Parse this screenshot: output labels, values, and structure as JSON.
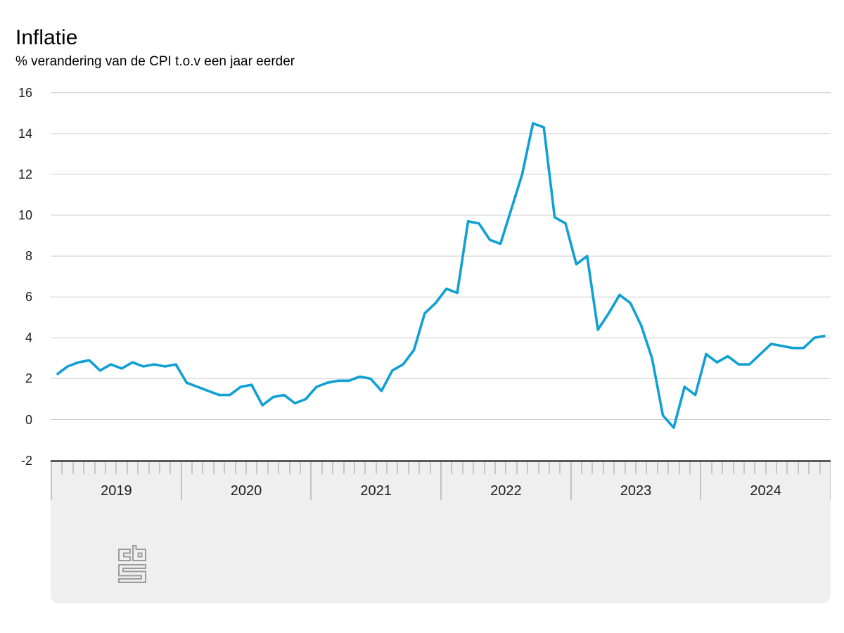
{
  "header": {
    "title": "Inflatie",
    "subtitle": "% verandering van de CPI t.o.v een jaar eerder"
  },
  "footer": {
    "logo_icon": "cbs-logo"
  },
  "colors": {
    "line": "#10a0d3",
    "axis_band": "#efefef",
    "axis_border": "#59595b",
    "gridline": "#cccccc",
    "logo": "#9c9c9c"
  },
  "chart_data": {
    "type": "line",
    "title": "Inflatie",
    "subtitle": "% verandering van de CPI t.o.v een jaar eerder",
    "unit": "%",
    "ylim": [
      -2,
      16
    ],
    "yticks": [
      16,
      14,
      12,
      10,
      8,
      6,
      4,
      2,
      0,
      -2
    ],
    "grid": "horizontal",
    "legend": "none",
    "years": [
      "2019",
      "2020",
      "2021",
      "2022",
      "2023",
      "2024"
    ],
    "x_range": "Jan 2019 - Dec 2024, monthly",
    "line_color": "#10a0d3",
    "series": [
      {
        "name": "Inflatie",
        "monthly_values": [
          2.2,
          2.6,
          2.8,
          2.9,
          2.4,
          2.7,
          2.5,
          2.8,
          2.6,
          2.7,
          2.6,
          2.7,
          1.8,
          1.6,
          1.4,
          1.2,
          1.2,
          1.6,
          1.7,
          0.7,
          1.1,
          1.2,
          0.8,
          1.0,
          1.6,
          1.8,
          1.9,
          1.9,
          2.1,
          2.0,
          1.4,
          2.4,
          2.7,
          3.4,
          5.2,
          5.7,
          6.4,
          6.2,
          9.7,
          9.6,
          8.8,
          8.6,
          10.3,
          12.0,
          14.5,
          14.3,
          9.9,
          9.6,
          7.6,
          8.0,
          4.4,
          5.2,
          6.1,
          5.7,
          4.6,
          3.0,
          0.2,
          -0.4,
          1.6,
          1.2,
          3.2,
          2.8,
          3.1,
          2.7,
          2.7,
          3.2,
          3.7,
          3.6,
          3.5,
          3.5,
          4.0,
          4.1
        ]
      }
    ]
  }
}
